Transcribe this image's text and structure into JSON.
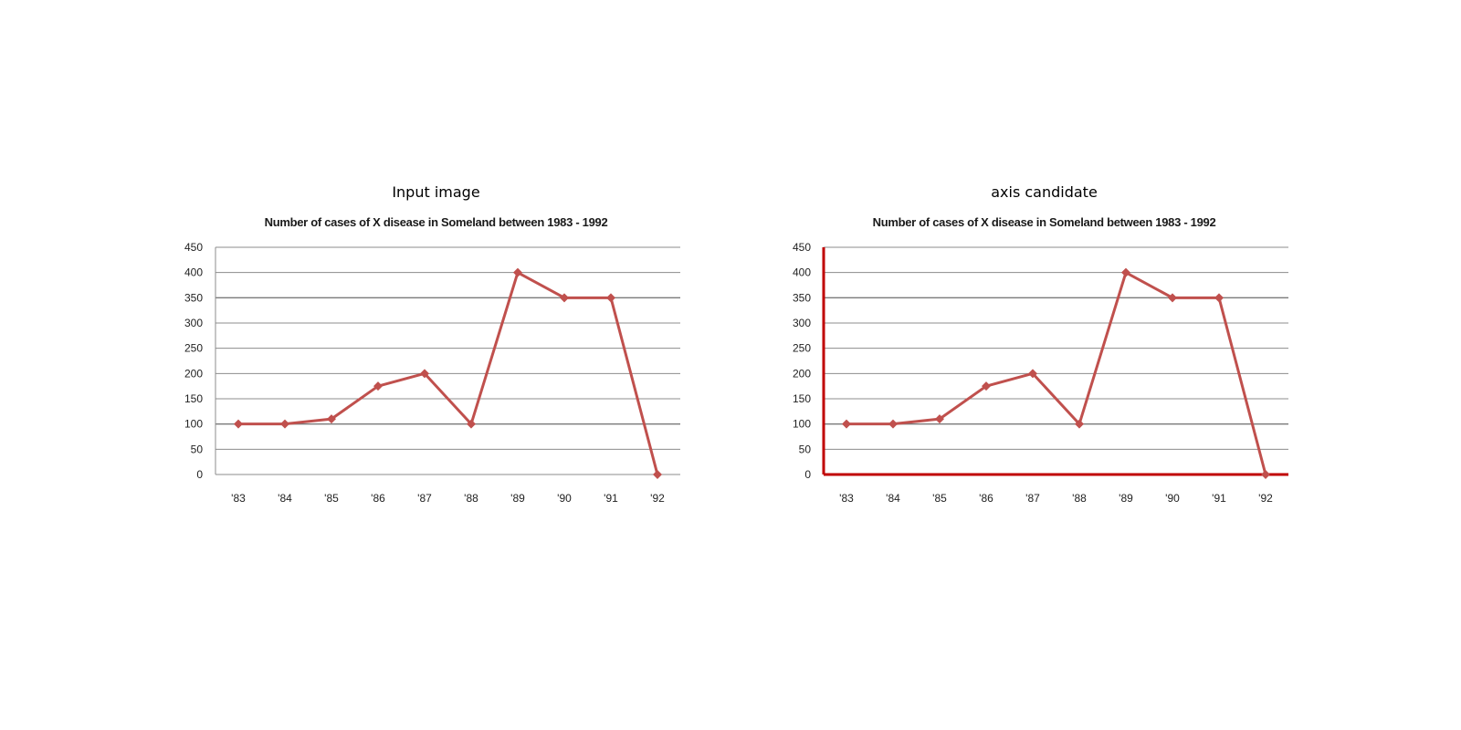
{
  "panels": [
    {
      "heading": "Input image",
      "highlight_axes": false
    },
    {
      "heading": "axis candidate",
      "highlight_axes": true
    }
  ],
  "axis_highlight_color": "#c00000",
  "chart_data": [
    {
      "type": "line",
      "title": "Number of cases of X disease in Someland between 1983  - 1992",
      "xlabel": "",
      "ylabel": "",
      "categories": [
        "'83",
        "'84",
        "'85",
        "'86",
        "'87",
        "'88",
        "'89",
        "'90",
        "'91",
        "'92"
      ],
      "series": [
        {
          "values": [
            100,
            100,
            110,
            175,
            200,
            100,
            400,
            350,
            350,
            0
          ],
          "color": "#c0504d",
          "marker": "diamond"
        }
      ],
      "ylim": [
        0,
        450
      ],
      "yticks": [
        0,
        50,
        100,
        150,
        200,
        250,
        300,
        350,
        400,
        450
      ],
      "grid": true,
      "legend": "none"
    },
    {
      "type": "line",
      "title": "Number of cases of X disease in Someland between 1983  - 1992",
      "xlabel": "",
      "ylabel": "",
      "categories": [
        "'83",
        "'84",
        "'85",
        "'86",
        "'87",
        "'88",
        "'89",
        "'90",
        "'91",
        "'92"
      ],
      "series": [
        {
          "values": [
            100,
            100,
            110,
            175,
            200,
            100,
            400,
            350,
            350,
            0
          ],
          "color": "#c0504d",
          "marker": "diamond"
        }
      ],
      "ylim": [
        0,
        450
      ],
      "yticks": [
        0,
        50,
        100,
        150,
        200,
        250,
        300,
        350,
        400,
        450
      ],
      "grid": true,
      "legend": "none"
    }
  ]
}
